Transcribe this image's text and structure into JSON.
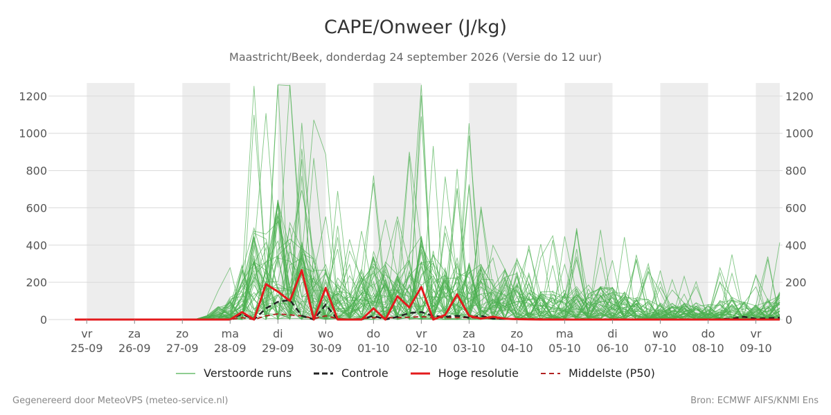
{
  "chart_data": {
    "type": "line",
    "title": "CAPE/Onweer (J/kg)",
    "subtitle": "Maastricht/Beek, donderdag 24 september 2026 (Versie do 12 uur)",
    "ylim": [
      0,
      1270
    ],
    "yticks": [
      0,
      200,
      400,
      600,
      800,
      1000,
      1200
    ],
    "xlim": [
      -0.25,
      14.5
    ],
    "x_ticks": [
      {
        "day": "vr",
        "date": "25-09",
        "x": 0
      },
      {
        "day": "za",
        "date": "26-09",
        "x": 1
      },
      {
        "day": "zo",
        "date": "27-09",
        "x": 2
      },
      {
        "day": "ma",
        "date": "28-09",
        "x": 3
      },
      {
        "day": "di",
        "date": "29-09",
        "x": 4
      },
      {
        "day": "wo",
        "date": "30-09",
        "x": 5
      },
      {
        "day": "do",
        "date": "01-10",
        "x": 6
      },
      {
        "day": "vr",
        "date": "02-10",
        "x": 7
      },
      {
        "day": "za",
        "date": "03-10",
        "x": 8
      },
      {
        "day": "zo",
        "date": "04-10",
        "x": 9
      },
      {
        "day": "ma",
        "date": "05-10",
        "x": 10
      },
      {
        "day": "di",
        "date": "06-10",
        "x": 11
      },
      {
        "day": "wo",
        "date": "07-10",
        "x": 12
      },
      {
        "day": "do",
        "date": "08-10",
        "x": 13
      },
      {
        "day": "vr",
        "date": "09-10",
        "x": 14
      }
    ],
    "shaded_periods": [
      [
        0,
        1
      ],
      [
        2,
        3
      ],
      [
        4,
        5
      ],
      [
        6,
        7
      ],
      [
        8,
        9
      ],
      [
        10,
        11
      ],
      [
        12,
        13
      ],
      [
        14,
        14.5
      ]
    ],
    "grid": true,
    "legend_position": "bottom",
    "colors": {
      "ensemble": "#4caf50",
      "control": "#222222",
      "high_res": "#e31a1c",
      "median": "#b22222",
      "shade": "#ededed",
      "grid": "#d9d9d9"
    },
    "series": [
      {
        "name": "Hoge resolutie",
        "style": "high_res",
        "x": [
          -0.25,
          0,
          0.5,
          1,
          1.5,
          2,
          2.5,
          3,
          3.25,
          3.5,
          3.75,
          4,
          4.25,
          4.5,
          4.75,
          5,
          5.25,
          5.5,
          5.75,
          6,
          6.25,
          6.5,
          6.75,
          7,
          7.25,
          7.5,
          7.75,
          8,
          8.25,
          8.5,
          8.75,
          9,
          9.5,
          10,
          10.5,
          11,
          12,
          13,
          14,
          14.5
        ],
        "y": [
          0,
          0,
          0,
          0,
          0,
          0,
          0,
          0,
          40,
          0,
          190,
          150,
          100,
          265,
          0,
          170,
          0,
          0,
          0,
          60,
          0,
          125,
          65,
          175,
          0,
          25,
          135,
          20,
          5,
          15,
          5,
          2,
          0,
          0,
          0,
          0,
          0,
          0,
          0,
          0
        ]
      },
      {
        "name": "Controle",
        "style": "control",
        "x": [
          -0.25,
          0,
          1,
          2,
          3,
          3.25,
          3.5,
          3.75,
          4,
          4.25,
          4.5,
          4.75,
          5,
          5.25,
          5.5,
          5.75,
          6,
          6.25,
          6.5,
          6.75,
          7,
          7.25,
          7.5,
          7.75,
          8,
          8.25,
          8.5,
          9,
          10,
          11,
          12,
          13,
          13.5,
          13.75,
          14,
          14.5
        ],
        "y": [
          0,
          0,
          0,
          0,
          0,
          30,
          0,
          60,
          95,
          105,
          20,
          0,
          80,
          0,
          0,
          0,
          20,
          0,
          15,
          35,
          40,
          20,
          15,
          20,
          10,
          20,
          5,
          2,
          0,
          0,
          0,
          0,
          5,
          15,
          5,
          10
        ]
      },
      {
        "name": "Middelste (P50)",
        "style": "median",
        "x": [
          -0.25,
          0,
          2,
          3,
          3.25,
          3.5,
          3.75,
          4,
          4.25,
          4.5,
          4.75,
          5,
          5.25,
          5.5,
          6,
          6.5,
          7,
          7.5,
          8,
          8.5,
          9,
          10,
          11,
          12,
          13,
          14,
          14.5
        ],
        "y": [
          0,
          0,
          0,
          0,
          10,
          0,
          20,
          30,
          25,
          20,
          5,
          20,
          5,
          0,
          10,
          10,
          15,
          10,
          10,
          5,
          5,
          2,
          2,
          2,
          2,
          2,
          2
        ]
      }
    ]
  },
  "legend": {
    "ensemble": "Verstoorde runs",
    "control": "Controle",
    "high_res": "Hoge resolutie",
    "median": "Middelste (P50)"
  },
  "footer": {
    "left": "Gegenereerd door MeteoVPS (meteo-service.nl)",
    "right": "Bron: ECMWF AIFS/KNMI Ens"
  }
}
